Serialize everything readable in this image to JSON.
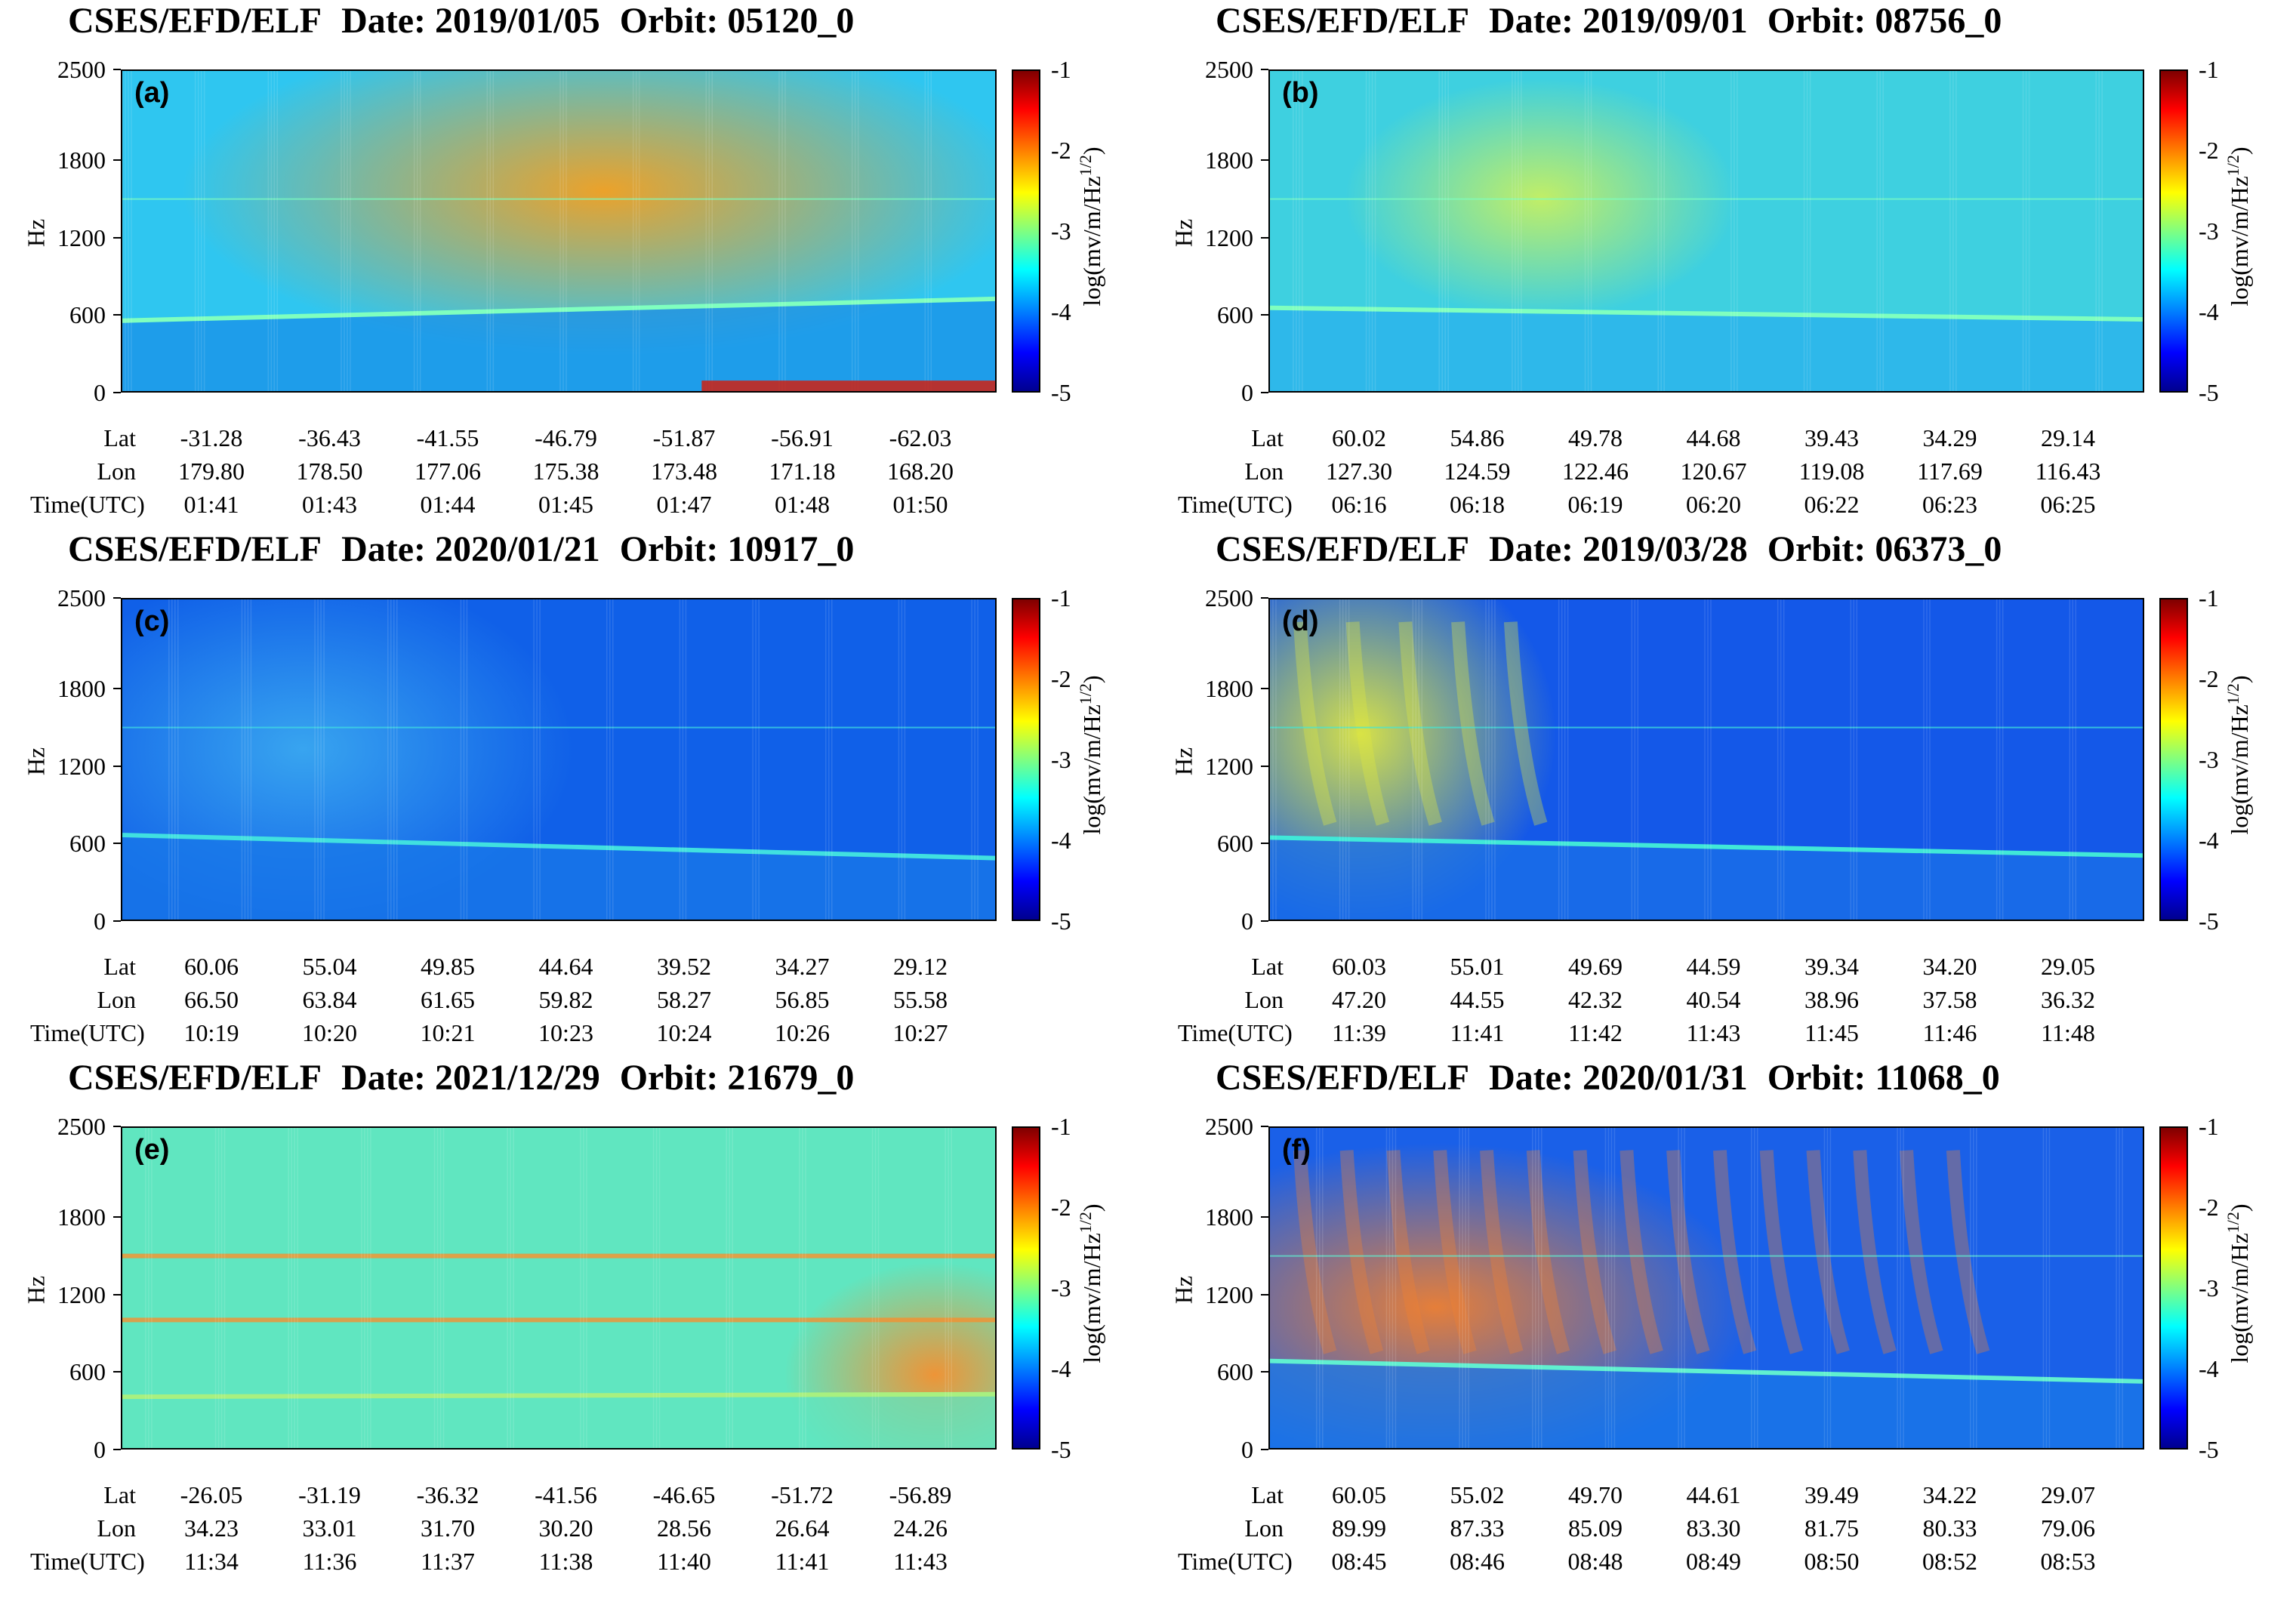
{
  "panels": [
    {
      "id": "a",
      "title": {
        "instrument": "CSES/EFD/ELF",
        "date": "Date: 2019/01/05",
        "orbit": "Orbit: 05120_0"
      },
      "label": "(a)",
      "ylabel": "Hz",
      "yticks": [
        "2500",
        "1800",
        "1200",
        "600",
        "0"
      ],
      "colorbar": {
        "label": "log(mv/m/Hz",
        "exp": "1/2",
        "close": ")",
        "ticks": [
          "-1",
          "-2",
          "-3",
          "-4",
          "-5"
        ]
      },
      "row_headers": [
        "Lat",
        "Lon",
        "Time(UTC)"
      ],
      "lat": [
        "-31.28",
        "-36.43",
        "-41.55",
        "-46.79",
        "-51.87",
        "-56.91",
        "-62.03"
      ],
      "lon": [
        "179.80",
        "178.50",
        "177.06",
        "175.38",
        "173.48",
        "171.18",
        "168.20"
      ],
      "time": [
        "01:41",
        "01:43",
        "01:44",
        "01:45",
        "01:47",
        "01:48",
        "01:50"
      ],
      "colors": {
        "background": "#2fc6f0",
        "hot": "#f5a020",
        "cutoff_line": "#7fffbf",
        "lower": "#1a8fe8"
      }
    },
    {
      "id": "b",
      "title": {
        "instrument": "CSES/EFD/ELF",
        "date": "Date: 2019/09/01",
        "orbit": "Orbit: 08756_0"
      },
      "label": "(b)",
      "ylabel": "Hz",
      "yticks": [
        "2500",
        "1800",
        "1200",
        "600",
        "0"
      ],
      "colorbar": {
        "label": "log(mv/m/Hz",
        "exp": "1/2",
        "close": ")",
        "ticks": [
          "-1",
          "-2",
          "-3",
          "-4",
          "-5"
        ]
      },
      "row_headers": [
        "Lat",
        "Lon",
        "Time(UTC)"
      ],
      "lat": [
        "60.02",
        "54.86",
        "49.78",
        "44.68",
        "39.43",
        "34.29",
        "29.14"
      ],
      "lon": [
        "127.30",
        "124.59",
        "122.46",
        "120.67",
        "119.08",
        "117.69",
        "116.43"
      ],
      "time": [
        "06:16",
        "06:18",
        "06:19",
        "06:20",
        "06:22",
        "06:23",
        "06:25"
      ],
      "colors": {
        "background": "#3ed0e0",
        "hot": "#c8f060",
        "cutoff_line": "#7fffbf",
        "lower": "#2ab0ee"
      }
    },
    {
      "id": "c",
      "title": {
        "instrument": "CSES/EFD/ELF",
        "date": "Date: 2020/01/21",
        "orbit": "Orbit: 10917_0"
      },
      "label": "(c)",
      "ylabel": "Hz",
      "yticks": [
        "2500",
        "1800",
        "1200",
        "600",
        "0"
      ],
      "colorbar": {
        "label": "log(mv/m/Hz",
        "exp": "1/2",
        "close": ")",
        "ticks": [
          "-1",
          "-2",
          "-3",
          "-4",
          "-5"
        ]
      },
      "row_headers": [
        "Lat",
        "Lon",
        "Time(UTC)"
      ],
      "lat": [
        "60.06",
        "55.04",
        "49.85",
        "44.64",
        "39.52",
        "34.27",
        "29.12"
      ],
      "lon": [
        "66.50",
        "63.84",
        "61.65",
        "59.82",
        "58.27",
        "56.85",
        "55.58"
      ],
      "time": [
        "10:19",
        "10:20",
        "10:21",
        "10:23",
        "10:24",
        "10:26",
        "10:27"
      ],
      "colors": {
        "background": "#1060e8",
        "hot": "#3aa8f0",
        "cutoff_line": "#40e0e0",
        "lower": "#1878e8"
      }
    },
    {
      "id": "d",
      "title": {
        "instrument": "CSES/EFD/ELF",
        "date": "Date: 2019/03/28",
        "orbit": "Orbit: 06373_0"
      },
      "label": "(d)",
      "ylabel": "Hz",
      "yticks": [
        "2500",
        "1800",
        "1200",
        "600",
        "0"
      ],
      "colorbar": {
        "label": "log(mv/m/Hz",
        "exp": "1/2",
        "close": ")",
        "ticks": [
          "-1",
          "-2",
          "-3",
          "-4",
          "-5"
        ]
      },
      "row_headers": [
        "Lat",
        "Lon",
        "Time(UTC)"
      ],
      "lat": [
        "60.03",
        "55.01",
        "49.69",
        "44.59",
        "39.34",
        "34.20",
        "29.05"
      ],
      "lon": [
        "47.20",
        "44.55",
        "42.32",
        "40.54",
        "38.96",
        "37.58",
        "36.32"
      ],
      "time": [
        "11:39",
        "11:41",
        "11:42",
        "11:43",
        "11:45",
        "11:46",
        "11:48"
      ],
      "colors": {
        "background": "#1458e8",
        "hot": "#e0e840",
        "cutoff_line": "#40e8d8",
        "lower": "#1a70e8"
      }
    },
    {
      "id": "e",
      "title": {
        "instrument": "CSES/EFD/ELF",
        "date": "Date: 2021/12/29",
        "orbit": "Orbit: 21679_0"
      },
      "label": "(e)",
      "ylabel": "Hz",
      "yticks": [
        "2500",
        "1800",
        "1200",
        "600",
        "0"
      ],
      "colorbar": {
        "label": "log(mv/m/Hz",
        "exp": "1/2",
        "close": ")",
        "ticks": [
          "-1",
          "-2",
          "-3",
          "-4",
          "-5"
        ]
      },
      "row_headers": [
        "Lat",
        "Lon",
        "Time(UTC)"
      ],
      "lat": [
        "-26.05",
        "-31.19",
        "-36.32",
        "-41.56",
        "-46.65",
        "-51.72",
        "-56.89"
      ],
      "lon": [
        "34.23",
        "33.01",
        "31.70",
        "30.20",
        "28.56",
        "26.64",
        "24.26"
      ],
      "time": [
        "11:34",
        "11:36",
        "11:37",
        "11:38",
        "11:40",
        "11:41",
        "11:43"
      ],
      "colors": {
        "background": "#60e6c0",
        "hot": "#f59030",
        "cutoff_line": "#a8f080",
        "lower": "#60e6c0"
      }
    },
    {
      "id": "f",
      "title": {
        "instrument": "CSES/EFD/ELF",
        "date": "Date: 2020/01/31",
        "orbit": "Orbit: 11068_0"
      },
      "label": "(f)",
      "ylabel": "Hz",
      "yticks": [
        "2500",
        "1800",
        "1200",
        "600",
        "0"
      ],
      "colorbar": {
        "label": "log(mv/m/Hz",
        "exp": "1/2",
        "close": ")",
        "ticks": [
          "-1",
          "-2",
          "-3",
          "-4",
          "-5"
        ]
      },
      "row_headers": [
        "Lat",
        "Lon",
        "Time(UTC)"
      ],
      "lat": [
        "60.05",
        "55.02",
        "49.70",
        "44.61",
        "39.49",
        "34.22",
        "29.07"
      ],
      "lon": [
        "89.99",
        "87.33",
        "85.09",
        "83.30",
        "81.75",
        "80.33",
        "79.06"
      ],
      "time": [
        "08:45",
        "08:46",
        "08:48",
        "08:49",
        "08:50",
        "08:52",
        "08:53"
      ],
      "colors": {
        "background": "#1a60e8",
        "hot": "#f08030",
        "cutoff_line": "#60f0d0",
        "lower": "#1a78e8"
      }
    }
  ],
  "chart_data": [
    {
      "type": "heatmap",
      "title": "CSES/EFD/ELF Date: 2019/01/05 Orbit: 05120_0",
      "ylabel": "Hz",
      "ylim": [
        0,
        2500
      ],
      "zlabel": "log(mv/m/Hz^1/2)",
      "zlim": [
        -5,
        -1
      ],
      "x_lat": [
        -31.28,
        -36.43,
        -41.55,
        -46.79,
        -51.87,
        -56.91,
        -62.03
      ],
      "cutoff_hz_start": 550,
      "cutoff_hz_end": 720
    },
    {
      "type": "heatmap",
      "title": "CSES/EFD/ELF Date: 2019/09/01 Orbit: 08756_0",
      "ylabel": "Hz",
      "ylim": [
        0,
        2500
      ],
      "zlabel": "log(mv/m/Hz^1/2)",
      "zlim": [
        -5,
        -1
      ],
      "x_lat": [
        60.02,
        54.86,
        49.78,
        44.68,
        39.43,
        34.29,
        29.14
      ],
      "cutoff_hz_start": 650,
      "cutoff_hz_end": 560
    },
    {
      "type": "heatmap",
      "title": "CSES/EFD/ELF Date: 2020/01/21 Orbit: 10917_0",
      "ylabel": "Hz",
      "ylim": [
        0,
        2500
      ],
      "zlabel": "log(mv/m/Hz^1/2)",
      "zlim": [
        -5,
        -1
      ],
      "x_lat": [
        60.06,
        55.04,
        49.85,
        44.64,
        39.52,
        34.27,
        29.12
      ],
      "cutoff_hz_start": 660,
      "cutoff_hz_end": 480
    },
    {
      "type": "heatmap",
      "title": "CSES/EFD/ELF Date: 2019/03/28 Orbit: 06373_0",
      "ylabel": "Hz",
      "ylim": [
        0,
        2500
      ],
      "zlabel": "log(mv/m/Hz^1/2)",
      "zlim": [
        -5,
        -1
      ],
      "x_lat": [
        60.03,
        55.01,
        49.69,
        44.59,
        39.34,
        34.2,
        29.05
      ],
      "cutoff_hz_start": 640,
      "cutoff_hz_end": 500
    },
    {
      "type": "heatmap",
      "title": "CSES/EFD/ELF Date: 2021/12/29 Orbit: 21679_0",
      "ylabel": "Hz",
      "ylim": [
        0,
        2500
      ],
      "zlabel": "log(mv/m/Hz^1/2)",
      "zlim": [
        -5,
        -1
      ],
      "x_lat": [
        -26.05,
        -31.19,
        -36.32,
        -41.56,
        -46.65,
        -51.72,
        -56.89
      ],
      "cutoff_hz_start": 400,
      "cutoff_hz_end": 420
    },
    {
      "type": "heatmap",
      "title": "CSES/EFD/ELF Date: 2020/01/31 Orbit: 11068_0",
      "ylabel": "Hz",
      "ylim": [
        0,
        2500
      ],
      "zlabel": "log(mv/m/Hz^1/2)",
      "zlim": [
        -5,
        -1
      ],
      "x_lat": [
        60.05,
        55.02,
        49.7,
        44.61,
        39.49,
        34.22,
        29.07
      ],
      "cutoff_hz_start": 680,
      "cutoff_hz_end": 520
    }
  ]
}
